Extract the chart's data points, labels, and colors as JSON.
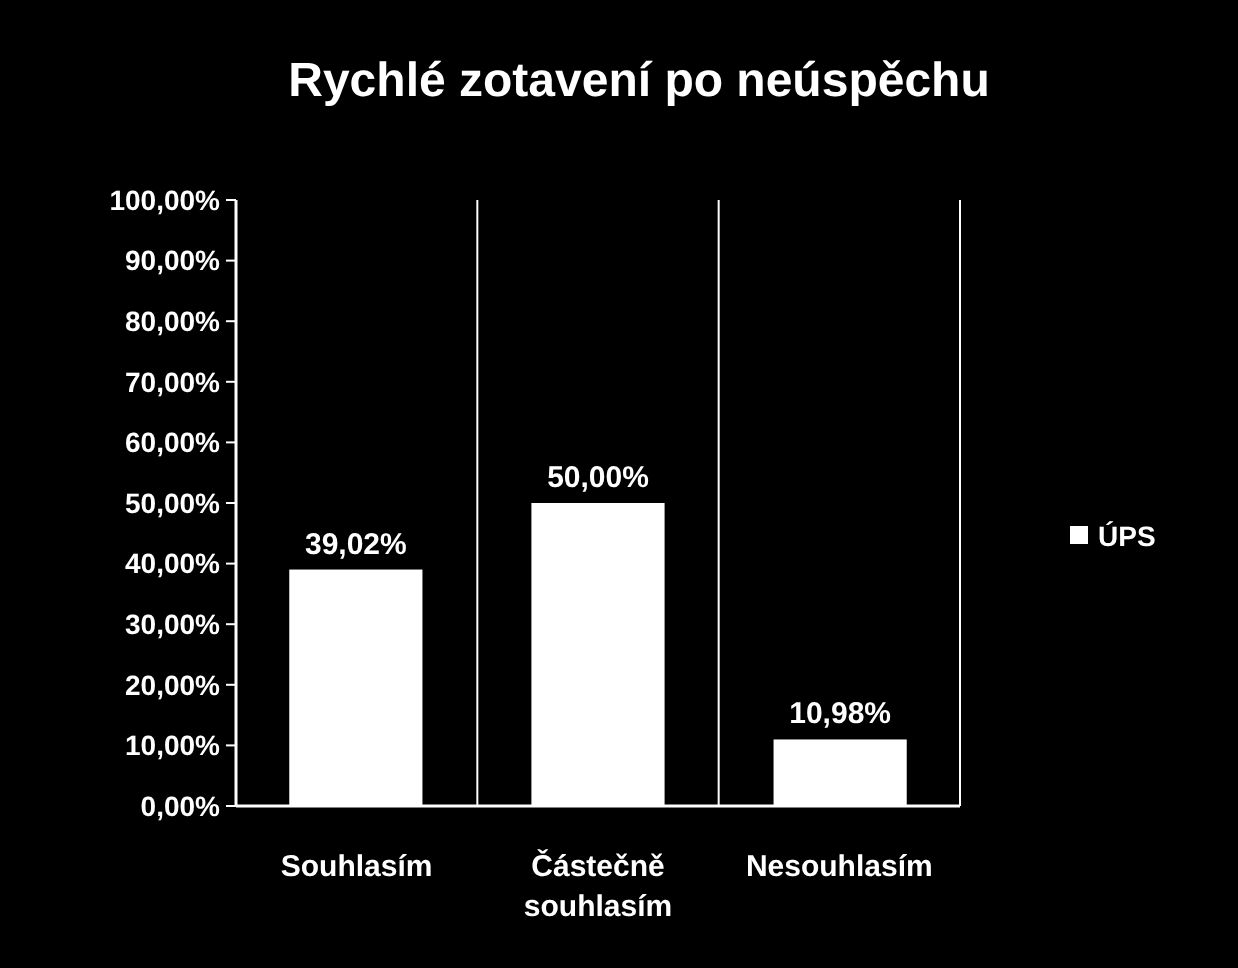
{
  "chart_data": {
    "type": "bar",
    "title": "Rychlé zotavení po neúspěchu",
    "categories": [
      "Souhlasím",
      "Částečně souhlasím",
      "Nesouhlasím"
    ],
    "series": [
      {
        "name": "ÚPS",
        "color": "#ffffff",
        "values": [
          39.02,
          50.0,
          10.98
        ],
        "value_labels": [
          "39,02%",
          "50,00%",
          "10,98%"
        ]
      }
    ],
    "ylim": [
      0,
      100
    ],
    "yticks": [
      {
        "value": 0,
        "label": "0,00%"
      },
      {
        "value": 10,
        "label": "10,00%"
      },
      {
        "value": 20,
        "label": "20,00%"
      },
      {
        "value": 30,
        "label": "30,00%"
      },
      {
        "value": 40,
        "label": "40,00%"
      },
      {
        "value": 50,
        "label": "50,00%"
      },
      {
        "value": 60,
        "label": "60,00%"
      },
      {
        "value": 70,
        "label": "70,00%"
      },
      {
        "value": 80,
        "label": "80,00%"
      },
      {
        "value": 90,
        "label": "90,00%"
      },
      {
        "value": 100,
        "label": "100,00%"
      }
    ],
    "grid": "x",
    "legend": "right"
  }
}
